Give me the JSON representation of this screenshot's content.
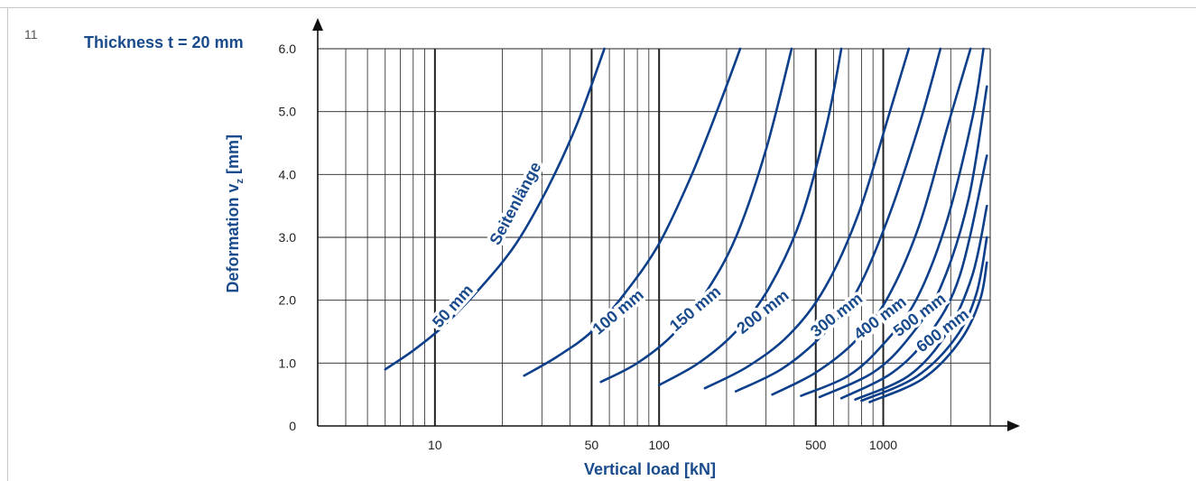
{
  "figure_number": "11",
  "chart_data": {
    "type": "line",
    "title": "Thickness t = 20 mm",
    "xlabel": "Vertical load [kN]",
    "ylabel": "Deformation v",
    "ylabel_sub": "z",
    "ylabel_suffix": " [mm]",
    "x_scale": "log",
    "xlim": [
      3,
      3000
    ],
    "ylim": [
      0,
      6
    ],
    "x_ticks": [
      10,
      50,
      100,
      500,
      1000
    ],
    "x_tick_labels": [
      "10",
      "50",
      "100",
      "500",
      "1000"
    ],
    "y_ticks": [
      0,
      1,
      2,
      3,
      4,
      5,
      6
    ],
    "y_tick_labels": [
      "0",
      "1.0",
      "2.0",
      "3.0",
      "4.0",
      "5.0",
      "6.0"
    ],
    "grid": true,
    "annotation": "Seitenlänge",
    "colors": {
      "curve": "#0d3f8a",
      "text": "#1a4b8c",
      "grid": "#222222"
    },
    "series": [
      {
        "name": "50 mm",
        "x": [
          6,
          8,
          11,
          16,
          23,
          32,
          43,
          57
        ],
        "y": [
          0.9,
          1.2,
          1.6,
          2.2,
          2.9,
          3.8,
          4.8,
          6.0
        ]
      },
      {
        "name": "100 mm",
        "x": [
          25,
          35,
          50,
          70,
          100,
          140,
          190,
          230
        ],
        "y": [
          0.8,
          1.1,
          1.5,
          2.1,
          2.9,
          4.0,
          5.2,
          6.0
        ]
      },
      {
        "name": "150 mm",
        "x": [
          55,
          80,
          115,
          160,
          220,
          300,
          390
        ],
        "y": [
          0.7,
          1.0,
          1.45,
          2.1,
          3.0,
          4.4,
          6.0
        ]
      },
      {
        "name": "200 mm",
        "x": [
          100,
          150,
          220,
          310,
          430,
          560,
          650
        ],
        "y": [
          0.65,
          1.0,
          1.5,
          2.2,
          3.3,
          4.8,
          6.0
        ]
      },
      {
        "name": "300 mm",
        "x": [
          160,
          250,
          380,
          550,
          780,
          1050,
          1300
        ],
        "y": [
          0.6,
          0.95,
          1.45,
          2.2,
          3.4,
          4.9,
          6.0
        ]
      },
      {
        "name": "400 mm",
        "x": [
          220,
          350,
          520,
          750,
          1050,
          1450,
          1800
        ],
        "y": [
          0.55,
          0.9,
          1.4,
          2.1,
          3.3,
          4.8,
          6.0
        ]
      },
      {
        "name": "500 mm",
        "x": [
          320,
          500,
          750,
          1050,
          1450,
          1950,
          2450
        ],
        "y": [
          0.5,
          0.85,
          1.35,
          2.05,
          3.2,
          4.8,
          6.0
        ]
      },
      {
        "name": "600 mm",
        "x": [
          430,
          700,
          1000,
          1400,
          1900,
          2500,
          2800
        ],
        "y": [
          0.48,
          0.8,
          1.3,
          2.0,
          3.2,
          4.9,
          6.0
        ]
      },
      {
        "name": "",
        "x": [
          520,
          900,
          1300,
          1800,
          2400,
          2900
        ],
        "y": [
          0.46,
          0.85,
          1.4,
          2.2,
          3.6,
          5.4
        ]
      },
      {
        "name": "",
        "x": [
          650,
          1100,
          1600,
          2200,
          2900
        ],
        "y": [
          0.44,
          0.85,
          1.45,
          2.4,
          4.3
        ]
      },
      {
        "name": "",
        "x": [
          750,
          1300,
          1900,
          2500,
          2900
        ],
        "y": [
          0.42,
          0.8,
          1.45,
          2.4,
          3.5
        ]
      },
      {
        "name": "",
        "x": [
          800,
          1400,
          2100,
          2600,
          2900
        ],
        "y": [
          0.4,
          0.78,
          1.4,
          2.1,
          3.0
        ]
      },
      {
        "name": "",
        "x": [
          870,
          1500,
          2200,
          2700,
          2900
        ],
        "y": [
          0.38,
          0.75,
          1.35,
          2.0,
          2.6
        ]
      }
    ]
  }
}
